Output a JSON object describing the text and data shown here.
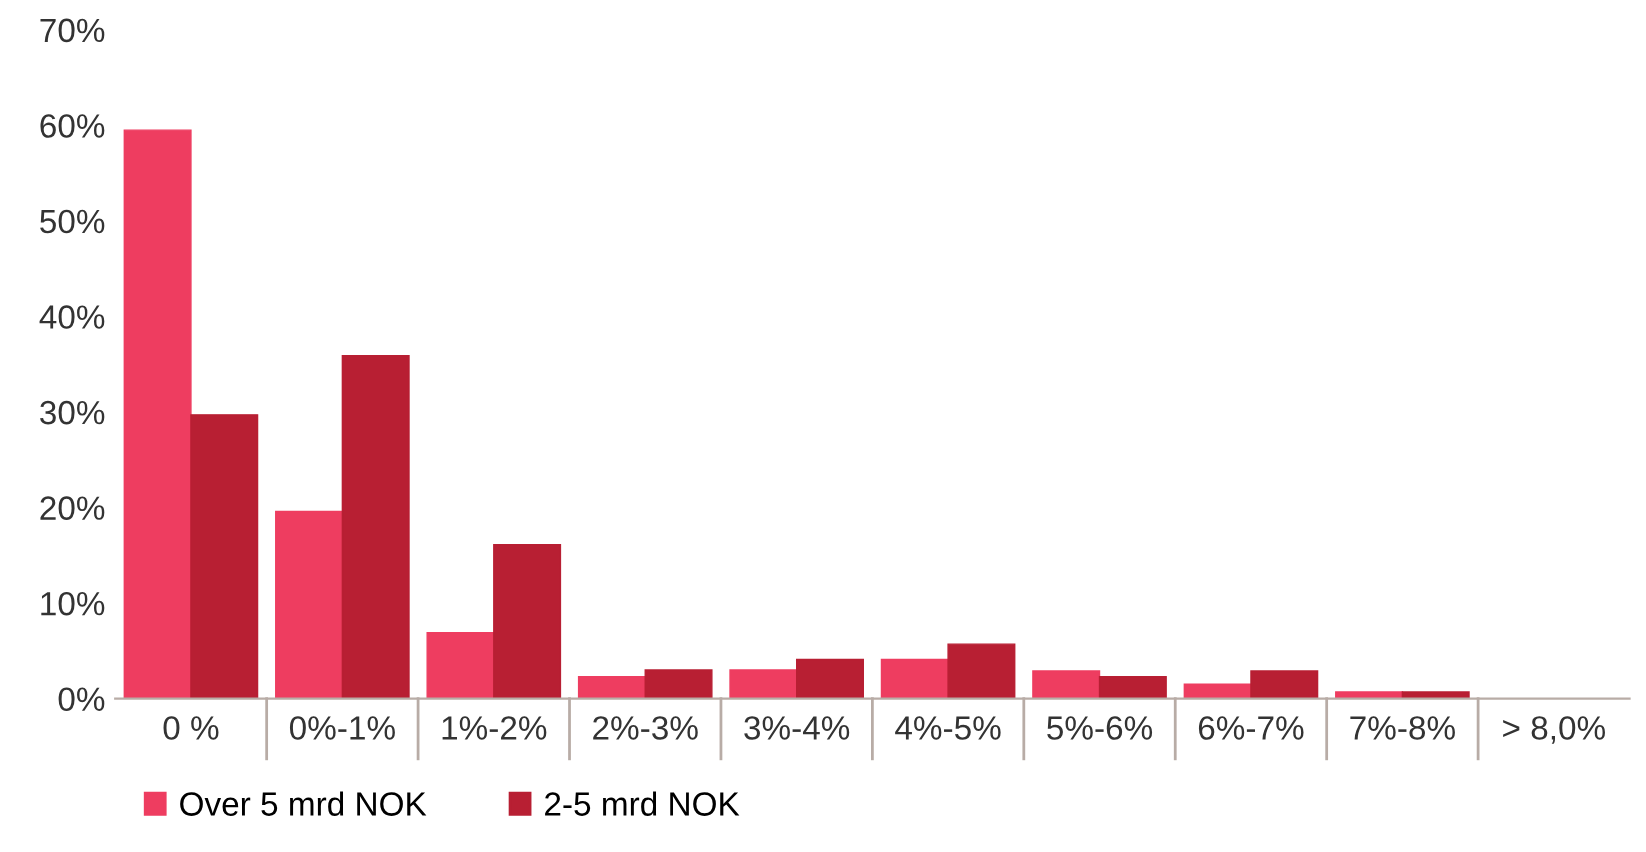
{
  "chart_data": {
    "type": "bar",
    "categories": [
      "0 %",
      "0%-1%",
      "1%-2%",
      "2%-3%",
      "3%-4%",
      "4%-5%",
      "5%-6%",
      "6%-7%",
      "7%-8%",
      "> 8,0%"
    ],
    "series": [
      {
        "name": "Over 5 mrd NOK",
        "color": "#ee3d60",
        "values": [
          59.5,
          19.6,
          6.9,
          2.3,
          3.0,
          4.1,
          2.9,
          1.5,
          0.7,
          0
        ]
      },
      {
        "name": "2-5 mrd NOK",
        "color": "#b81f33",
        "values": [
          29.7,
          35.9,
          16.1,
          3.0,
          4.1,
          5.7,
          2.3,
          2.9,
          0.7,
          0
        ]
      }
    ],
    "ylim": [
      0,
      70
    ],
    "yticks": [
      {
        "value": 0,
        "label": "0%"
      },
      {
        "value": 10,
        "label": "10%"
      },
      {
        "value": 20,
        "label": "20%"
      },
      {
        "value": 30,
        "label": "30%"
      },
      {
        "value": 40,
        "label": "40%"
      },
      {
        "value": 50,
        "label": "50%"
      },
      {
        "value": 60,
        "label": "60%"
      },
      {
        "value": 70,
        "label": "70%"
      }
    ],
    "grid": false,
    "legend": "bottom left"
  }
}
